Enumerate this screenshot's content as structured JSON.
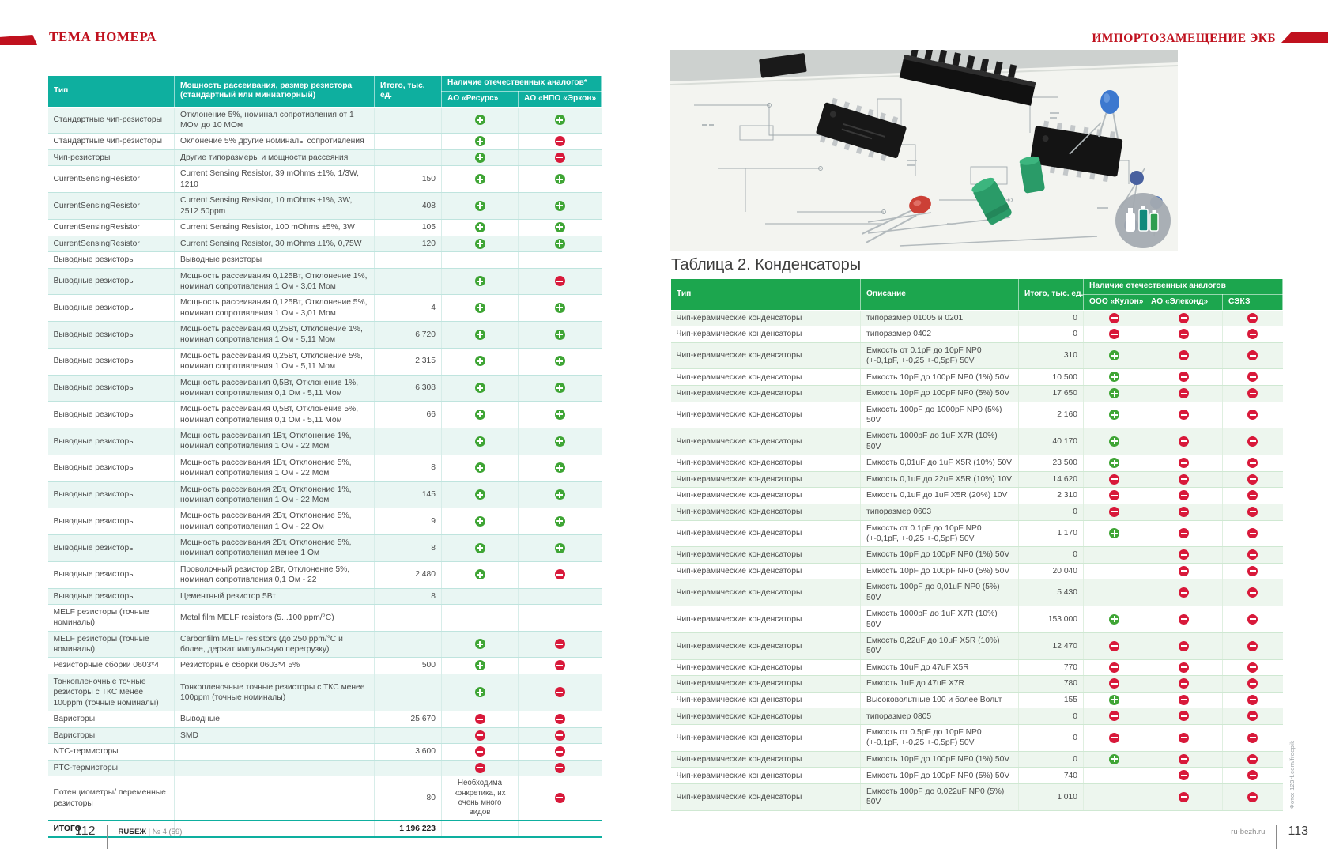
{
  "colors": {
    "teal_header": "#0EAF9F",
    "green_header": "#1CA64E",
    "plus_green": "#3FA535",
    "minus_red": "#D8193A",
    "accent_red": "#C0111E"
  },
  "icons": {
    "p": "plus-available-icon",
    "m": "minus-unavailable-icon"
  },
  "header": {
    "left_title": "ТЕМА НОМЕРА",
    "right_title": "ИМПОРТОЗАМЕЩЕНИЕ ЭКБ"
  },
  "footer": {
    "left_page": "112",
    "magazine": "RUБЕЖ",
    "issue": "| № 4 (59)",
    "right_site": "ru-bezh.ru",
    "right_page": "113"
  },
  "photo": {
    "credit": "Фото: 123rf.com/freepik",
    "description": "electronic components on circuit schematic"
  },
  "table1": {
    "headers": {
      "type": "Тип",
      "desc": "Мощность рассеивания, размер резистора (стандартный или миниатюрный)",
      "total": "Итого, тыс. ед.",
      "group": "Наличие отечественных аналогов*",
      "sub1": "АО «Ресурс»",
      "sub2": "АО «НПО «Эркон»"
    },
    "rows": [
      {
        "type": "Стандартные чип-резисторы",
        "desc": "Отклонение 5%, номинал сопротивления от 1 МОм до 10 МОм",
        "total": "",
        "a1": "p",
        "a2": "p"
      },
      {
        "type": "Стандартные чип-резисторы",
        "desc": "Оклонение 5% другие номиналы сопротивления",
        "total": "",
        "a1": "p",
        "a2": "m"
      },
      {
        "type": "Чип-резисторы",
        "desc": "Другие типоразмеры и мощности рассеяния",
        "total": "",
        "a1": "p",
        "a2": "m"
      },
      {
        "type": "CurrentSensingResistor",
        "desc": "Current Sensing Resistor, 39 mOhms ±1%, 1/3W, 1210",
        "total": "150",
        "a1": "p",
        "a2": "p"
      },
      {
        "type": "CurrentSensingResistor",
        "desc": "Current Sensing Resistor, 10 mOhms ±1%, 3W, 2512 50ppm",
        "total": "408",
        "a1": "p",
        "a2": "p"
      },
      {
        "type": "CurrentSensingResistor",
        "desc": "Current Sensing Resistor, 100 mOhms ±5%, 3W",
        "total": "105",
        "a1": "p",
        "a2": "p"
      },
      {
        "type": "CurrentSensingResistor",
        "desc": "Current Sensing Resistor, 30 mOhms ±1%, 0,75W",
        "total": "120",
        "a1": "p",
        "a2": "p"
      },
      {
        "type": "Выводные резисторы",
        "desc": "Выводные резисторы",
        "total": "",
        "a1": "",
        "a2": ""
      },
      {
        "type": "Выводные резисторы",
        "desc": "Мощность рассеивания 0,125Вт, Отклонение 1%, номинал сопротивления 1 Ом - 3,01 Мом",
        "total": "",
        "a1": "p",
        "a2": "m"
      },
      {
        "type": "Выводные резисторы",
        "desc": "Мощность рассеивания 0,125Вт, Отклонение 5%, номинал сопротивления 1 Ом - 3,01 Мом",
        "total": "4",
        "a1": "p",
        "a2": "p"
      },
      {
        "type": "Выводные резисторы",
        "desc": "Мощность рассеивания 0,25Вт, Отклонение 1%, номинал сопротивления 1 Ом - 5,11 Мом",
        "total": "6 720",
        "a1": "p",
        "a2": "p"
      },
      {
        "type": "Выводные резисторы",
        "desc": "Мощность рассеивания 0,25Вт, Отклонение 5%, номинал сопротивления 1 Ом - 5,11 Мом",
        "total": "2 315",
        "a1": "p",
        "a2": "p"
      },
      {
        "type": "Выводные резисторы",
        "desc": "Мощность рассеивания 0,5Вт, Отклонение 1%, номинал сопротивления 0,1 Ом - 5,11 Мом",
        "total": "6 308",
        "a1": "p",
        "a2": "p"
      },
      {
        "type": "Выводные резисторы",
        "desc": "Мощность рассеивания 0,5Вт, Отклонение 5%, номинал сопротивления 0,1 Ом - 5,11 Мом",
        "total": "66",
        "a1": "p",
        "a2": "p"
      },
      {
        "type": "Выводные резисторы",
        "desc": "Мощность рассеивания 1Вт, Отклонение 1%, номинал сопротивления 1 Ом - 22 Мом",
        "total": "",
        "a1": "p",
        "a2": "p"
      },
      {
        "type": "Выводные резисторы",
        "desc": "Мощность рассеивания 1Вт, Отклонение 5%, номинал сопротивления 1 Ом - 22 Мом",
        "total": "8",
        "a1": "p",
        "a2": "p"
      },
      {
        "type": "Выводные резисторы",
        "desc": "Мощность рассеивания 2Вт, Отклонение 1%, номинал сопротивления 1 Ом - 22 Мом",
        "total": "145",
        "a1": "p",
        "a2": "p"
      },
      {
        "type": "Выводные резисторы",
        "desc": "Мощность рассеивания 2Вт, Отклонение 5%, номинал сопротивления 1 Ом - 22 Ом",
        "total": "9",
        "a1": "p",
        "a2": "p"
      },
      {
        "type": "Выводные резисторы",
        "desc": "Мощность рассеивания 2Вт, Отклонение 5%, номинал сопротивления менее 1 Ом",
        "total": "8",
        "a1": "p",
        "a2": "p"
      },
      {
        "type": "Выводные резисторы",
        "desc": "Проволочный резистор 2Вт, Отклонение 5%, номинал сопротивления 0,1 Ом - 22",
        "total": "2 480",
        "a1": "p",
        "a2": "m"
      },
      {
        "type": "Выводные резисторы",
        "desc": "Цементный резистор 5Вт",
        "total": "8",
        "a1": "",
        "a2": ""
      },
      {
        "type": "MELF резисторы (точные номиналы)",
        "desc": "Metal film MELF resistors (5...100 ppm/°C)",
        "total": "",
        "a1": "",
        "a2": ""
      },
      {
        "type": "MELF резисторы (точные номиналы)",
        "desc": "Carbonfilm MELF resistors (до 250 ppm/°C и более, держат импульсную перегрузку)",
        "total": "",
        "a1": "p",
        "a2": "m"
      },
      {
        "type": "Резисторные сборки 0603*4",
        "desc": "Резисторные сборки 0603*4 5%",
        "total": "500",
        "a1": "p",
        "a2": "m"
      },
      {
        "type": "Тонкопленочные точные резисторы с ТКС менее 100ppm (точные номиналы)",
        "desc": "Тонкопленочные точные резисторы с ТКС менее 100ppm (точные номиналы)",
        "total": "",
        "a1": "p",
        "a2": "m"
      },
      {
        "type": "Варисторы",
        "desc": "Выводные",
        "total": "25 670",
        "a1": "m",
        "a2": "m"
      },
      {
        "type": "Варисторы",
        "desc": "SMD",
        "total": "",
        "a1": "m",
        "a2": "m"
      },
      {
        "type": "NTC-термисторы",
        "desc": "",
        "total": "3 600",
        "a1": "m",
        "a2": "m"
      },
      {
        "type": "PTC-термисторы",
        "desc": "",
        "total": "",
        "a1": "m",
        "a2": "m"
      },
      {
        "type": "Потенциометры/ переменные резисторы",
        "desc": "",
        "total": "80",
        "a1": "Необходима конкретика, их очень много видов",
        "a2": "m"
      }
    ],
    "total_label": "ИТОГО",
    "total_value": "1 196 223"
  },
  "table2": {
    "title": "Таблица 2. Конденсаторы",
    "headers": {
      "type": "Тип",
      "desc": "Описание",
      "total": "Итого, тыс. ед.",
      "group": "Наличие отечественных аналогов",
      "sub1": "ООО «Кулон»",
      "sub2": "АО «Элеконд»",
      "sub3": "СЭКЗ"
    },
    "rows": [
      {
        "type": "Чип-керамические конденсаторы",
        "desc": "типоразмер 01005 и 0201",
        "total": "0",
        "a1": "m",
        "a2": "m",
        "a3": "m"
      },
      {
        "type": "Чип-керамические конденсаторы",
        "desc": "типоразмер 0402",
        "total": "0",
        "a1": "m",
        "a2": "m",
        "a3": "m"
      },
      {
        "type": "Чип-керамические конденсаторы",
        "desc": "Емкость от 0.1pF до 10pF NP0 (+-0,1pF, +-0,25 +-0,5pF) 50V",
        "total": "310",
        "a1": "p",
        "a2": "m",
        "a3": "m"
      },
      {
        "type": "Чип-керамические конденсаторы",
        "desc": "Емкость 10pF до 100pF NP0 (1%) 50V",
        "total": "10 500",
        "a1": "p",
        "a2": "m",
        "a3": "m"
      },
      {
        "type": "Чип-керамические конденсаторы",
        "desc": "Емкость 10pF до 100pF NP0 (5%) 50V",
        "total": "17 650",
        "a1": "p",
        "a2": "m",
        "a3": "m"
      },
      {
        "type": "Чип-керамические конденсаторы",
        "desc": "Емкость 100pF до 1000pF NP0 (5%) 50V",
        "total": "2 160",
        "a1": "p",
        "a2": "m",
        "a3": "m"
      },
      {
        "type": "Чип-керамические конденсаторы",
        "desc": "Емкость 1000pF до 1uF X7R (10%) 50V",
        "total": "40 170",
        "a1": "p",
        "a2": "m",
        "a3": "m"
      },
      {
        "type": "Чип-керамические конденсаторы",
        "desc": "Емкость 0,01uF до 1uF X5R (10%) 50V",
        "total": "23 500",
        "a1": "p",
        "a2": "m",
        "a3": "m"
      },
      {
        "type": "Чип-керамические конденсаторы",
        "desc": "Емкость 0,1uF до 22uF X5R (10%) 10V",
        "total": "14 620",
        "a1": "m",
        "a2": "m",
        "a3": "m"
      },
      {
        "type": "Чип-керамические конденсаторы",
        "desc": "Емкость 0,1uF до 1uF X5R (20%) 10V",
        "total": "2 310",
        "a1": "m",
        "a2": "m",
        "a3": "m"
      },
      {
        "type": "Чип-керамические конденсаторы",
        "desc": "типоразмер 0603",
        "total": "0",
        "a1": "m",
        "a2": "m",
        "a3": "m"
      },
      {
        "type": "Чип-керамические конденсаторы",
        "desc": "Емкость от 0.1pF до 10pF NP0 (+-0,1pF, +-0,25 +-0,5pF) 50V",
        "total": "1 170",
        "a1": "p",
        "a2": "m",
        "a3": "m"
      },
      {
        "type": "Чип-керамические конденсаторы",
        "desc": "Емкость 10pF до 100pF NP0 (1%) 50V",
        "total": "0",
        "a1": "",
        "a2": "m",
        "a3": "m"
      },
      {
        "type": "Чип-керамические конденсаторы",
        "desc": "Емкость 10pF до 100pF NP0 (5%) 50V",
        "total": "20 040",
        "a1": "",
        "a2": "m",
        "a3": "m"
      },
      {
        "type": "Чип-керамические конденсаторы",
        "desc": "Емкость 100pF до 0,01uF NP0 (5%) 50V",
        "total": "5 430",
        "a1": "",
        "a2": "m",
        "a3": "m"
      },
      {
        "type": "Чип-керамические конденсаторы",
        "desc": "Емкость 1000pF до 1uF X7R (10%) 50V",
        "total": "153 000",
        "a1": "p",
        "a2": "m",
        "a3": "m"
      },
      {
        "type": "Чип-керамические конденсаторы",
        "desc": "Емкость 0,22uF до 10uF X5R (10%) 50V",
        "total": "12 470",
        "a1": "m",
        "a2": "m",
        "a3": "m"
      },
      {
        "type": "Чип-керамические конденсаторы",
        "desc": "Емкость 10uF до 47uF X5R",
        "total": "770",
        "a1": "m",
        "a2": "m",
        "a3": "m"
      },
      {
        "type": "Чип-керамические конденсаторы",
        "desc": "Емкость 1uF до 47uF X7R",
        "total": "780",
        "a1": "m",
        "a2": "m",
        "a3": "m"
      },
      {
        "type": "Чип-керамические конденсаторы",
        "desc": "Высоковольтные 100 и более Вольт",
        "total": "155",
        "a1": "p",
        "a2": "m",
        "a3": "m"
      },
      {
        "type": "Чип-керамические конденсаторы",
        "desc": "типоразмер 0805",
        "total": "0",
        "a1": "m",
        "a2": "m",
        "a3": "m"
      },
      {
        "type": "Чип-керамические конденсаторы",
        "desc": "Емкость от 0.5pF до 10pF NP0 (+-0,1pF, +-0,25 +-0,5pF) 50V",
        "total": "0",
        "a1": "m",
        "a2": "m",
        "a3": "m"
      },
      {
        "type": "Чип-керамические конденсаторы",
        "desc": "Емкость 10pF до 100pF NP0 (1%) 50V",
        "total": "0",
        "a1": "p",
        "a2": "m",
        "a3": "m"
      },
      {
        "type": "Чип-керамические конденсаторы",
        "desc": "Емкость 10pF до 100pF NP0 (5%) 50V",
        "total": "740",
        "a1": "",
        "a2": "m",
        "a3": "m"
      },
      {
        "type": "Чип-керамические конденсаторы",
        "desc": "Емкость 100pF до 0,022uF NP0 (5%) 50V",
        "total": "1 010",
        "a1": "",
        "a2": "m",
        "a3": "m"
      }
    ]
  }
}
